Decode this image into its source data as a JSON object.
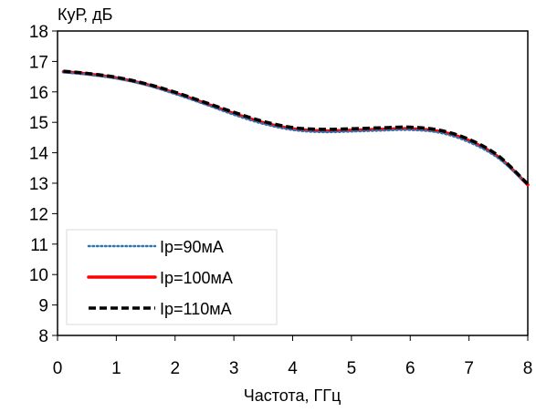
{
  "chart_data": {
    "type": "line",
    "title": "",
    "xlabel": "Частота, ГГц",
    "ylabel": "КуР, дБ",
    "xlim": [
      0,
      8
    ],
    "ylim": [
      8,
      18
    ],
    "xticks": [
      "0",
      "1",
      "2",
      "3",
      "4",
      "5",
      "6",
      "7",
      "8"
    ],
    "yticks": [
      "8",
      "9",
      "10",
      "11",
      "12",
      "13",
      "14",
      "15",
      "16",
      "17",
      "18"
    ],
    "grid": false,
    "legend_position": "bottom-left",
    "x": [
      0.1,
      0.5,
      1.0,
      1.5,
      2.0,
      2.5,
      3.0,
      3.5,
      4.0,
      4.5,
      5.0,
      5.5,
      6.0,
      6.5,
      7.0,
      7.5,
      8.0
    ],
    "series": [
      {
        "name": "Ip=90мА",
        "color": "#2e75b6",
        "style": "dotted",
        "values": [
          16.64,
          16.57,
          16.44,
          16.23,
          15.93,
          15.6,
          15.25,
          14.95,
          14.75,
          14.68,
          14.7,
          14.73,
          14.75,
          14.66,
          14.35,
          13.82,
          12.95
        ]
      },
      {
        "name": "Ip=100мА",
        "color": "#ff0000",
        "style": "solid",
        "values": [
          16.66,
          16.59,
          16.46,
          16.25,
          15.96,
          15.63,
          15.29,
          14.99,
          14.79,
          14.72,
          14.74,
          14.77,
          14.79,
          14.7,
          14.4,
          13.86,
          12.95
        ]
      },
      {
        "name": "Ip=110мА",
        "color": "#000000",
        "style": "dashed",
        "values": [
          16.68,
          16.61,
          16.48,
          16.27,
          15.99,
          15.66,
          15.33,
          15.03,
          14.83,
          14.77,
          14.79,
          14.82,
          14.84,
          14.74,
          14.44,
          13.9,
          12.97
        ]
      }
    ]
  }
}
